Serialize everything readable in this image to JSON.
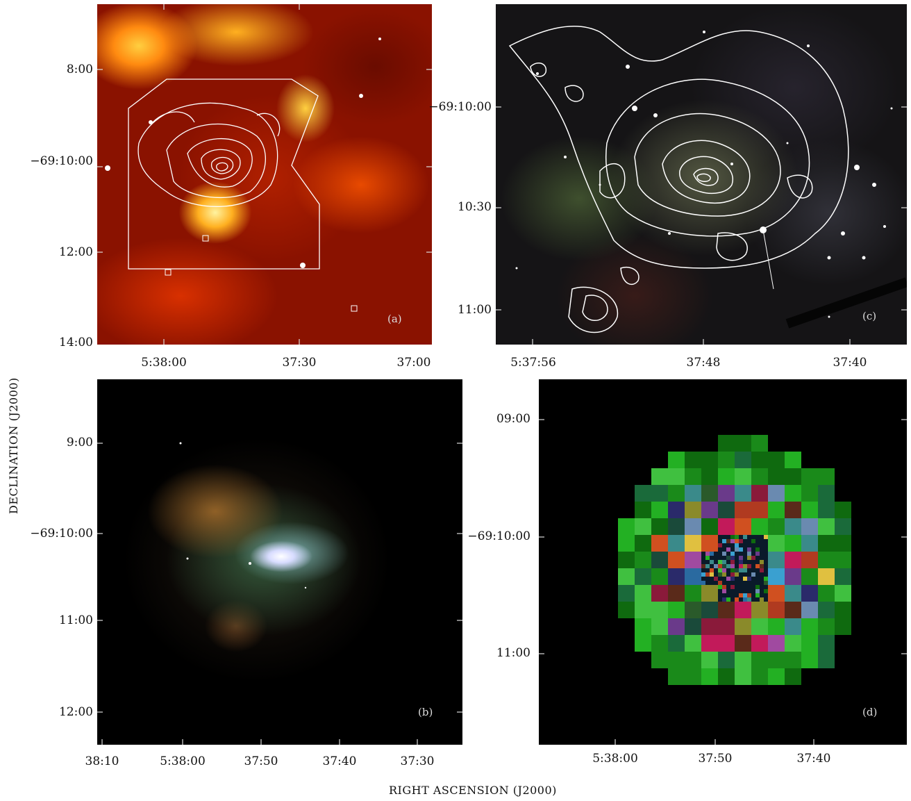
{
  "axes": {
    "y_label": "DECLINATION (J2000)",
    "x_label": "RIGHT ASCENSION (J2000)"
  },
  "panels": {
    "a": {
      "letter": "(a)",
      "y_ticks": [
        "8:00",
        "−69:10:00",
        "12:00",
        "14:00"
      ],
      "x_ticks": [
        "5:38:00",
        "37:30",
        "37:00"
      ]
    },
    "c": {
      "letter": "(c)",
      "y_ticks": [
        "−69:10:00",
        "10:30",
        "11:00"
      ],
      "x_ticks": [
        "5:37:56",
        "37:48",
        "37:40"
      ]
    },
    "b": {
      "letter": "(b)",
      "y_ticks": [
        "9:00",
        "−69:10:00",
        "11:00",
        "12:00"
      ],
      "x_ticks": [
        "38:10",
        "5:38:00",
        "37:50",
        "37:40",
        "37:30"
      ]
    },
    "d": {
      "letter": "(d)",
      "y_ticks": [
        "09:00",
        "−69:10:00",
        "11:00"
      ],
      "x_ticks": [
        "5:38:00",
        "37:50",
        "37:40"
      ]
    }
  },
  "colors": {
    "contour": "#ffffff",
    "panel_a_base": "#8a1200",
    "panel_a_hot": "#ffd23a"
  }
}
